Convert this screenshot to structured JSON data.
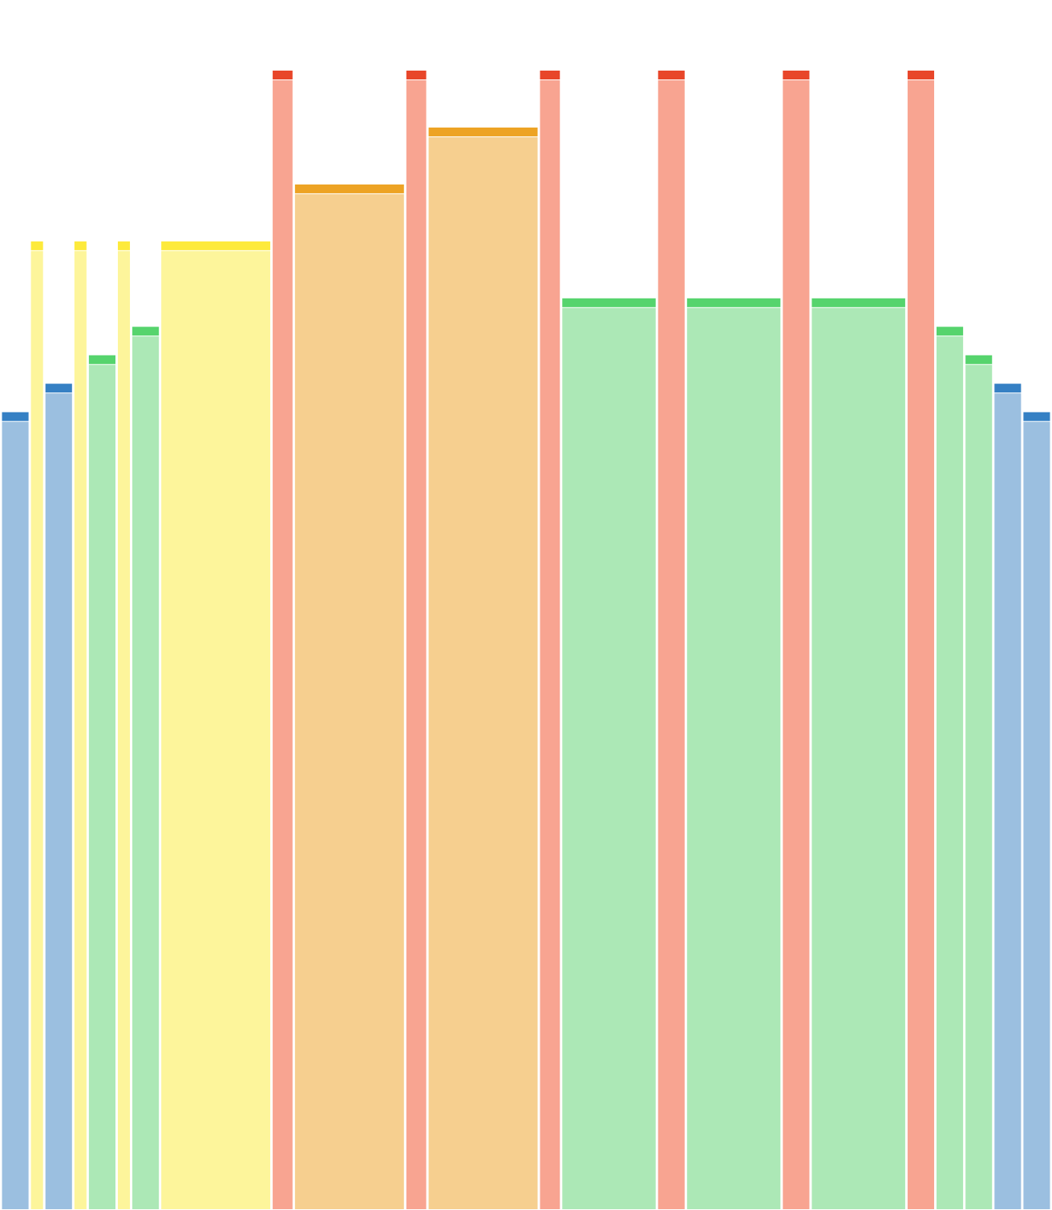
{
  "chart_data": {
    "type": "bar",
    "subtype": "variable-width",
    "title": "",
    "xlabel": "",
    "ylabel": "",
    "axes_visible": false,
    "grid": false,
    "legend": "none",
    "ylim": [
      0,
      100
    ],
    "bars": [
      {
        "width": 2.6,
        "value": 70,
        "color": "blue"
      },
      {
        "width": 1.3,
        "value": 85,
        "color": "yellow"
      },
      {
        "width": 2.6,
        "value": 72.5,
        "color": "blue"
      },
      {
        "width": 1.3,
        "value": 85,
        "color": "yellow"
      },
      {
        "width": 2.6,
        "value": 75,
        "color": "green"
      },
      {
        "width": 1.3,
        "value": 85,
        "color": "yellow"
      },
      {
        "width": 2.6,
        "value": 77.5,
        "color": "green"
      },
      {
        "width": 10,
        "value": 85,
        "color": "yellow"
      },
      {
        "width": 2,
        "value": 100,
        "color": "red"
      },
      {
        "width": 10,
        "value": 90,
        "color": "orange"
      },
      {
        "width": 2,
        "value": 100,
        "color": "red"
      },
      {
        "width": 10,
        "value": 95,
        "color": "orange"
      },
      {
        "width": 2,
        "value": 100,
        "color": "red"
      },
      {
        "width": 8.6,
        "value": 80,
        "color": "green"
      },
      {
        "width": 2.6,
        "value": 100,
        "color": "red"
      },
      {
        "width": 8.6,
        "value": 80,
        "color": "green"
      },
      {
        "width": 2.6,
        "value": 100,
        "color": "red"
      },
      {
        "width": 8.6,
        "value": 80,
        "color": "green"
      },
      {
        "width": 2.6,
        "value": 100,
        "color": "red"
      },
      {
        "width": 2.6,
        "value": 77.5,
        "color": "green"
      },
      {
        "width": 2.6,
        "value": 75,
        "color": "green"
      },
      {
        "width": 2.6,
        "value": 72.5,
        "color": "blue"
      },
      {
        "width": 2.6,
        "value": 70,
        "color": "blue"
      }
    ],
    "palette": {
      "blue": {
        "fill": "#9bbfe0",
        "cap": "#3580c4"
      },
      "yellow": {
        "fill": "#fdf59b",
        "cap": "#fdea3c"
      },
      "green": {
        "fill": "#ace8b6",
        "cap": "#56d46d"
      },
      "orange": {
        "fill": "#f6cf8f",
        "cap": "#eda324"
      },
      "red": {
        "fill": "#f8a491",
        "cap": "#e8462a"
      }
    }
  }
}
